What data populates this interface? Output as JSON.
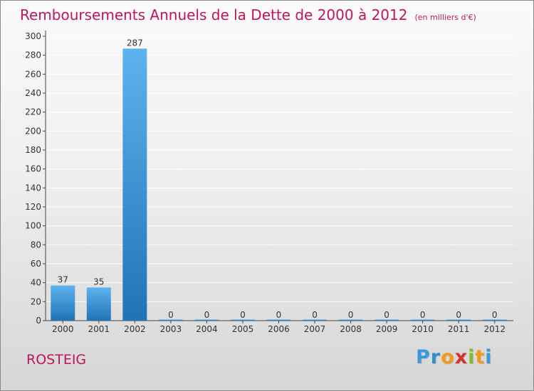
{
  "header": {
    "title": "Remboursements Annuels de la Dette de 2000 à 2012",
    "unit": "(en milliers d'€)"
  },
  "commune": "ROSTEIG",
  "logo": {
    "text": "Proxiti",
    "letters": [
      "P",
      "r",
      "o",
      "x",
      "i",
      "t",
      "i"
    ],
    "colors": [
      "#3a9ad9",
      "#2e8fd0",
      "#f29a1c",
      "#d8312b",
      "#80bb2c",
      "#f29a1c",
      "#3a9ad9"
    ]
  },
  "colors": {
    "title": "#c0155a",
    "bar_top": "#5db3ec",
    "bar_bottom": "#1f74b8",
    "grid": "#ffffff"
  },
  "chart_data": {
    "type": "bar",
    "title": "Remboursements Annuels de la Dette de 2000 à 2012",
    "xlabel": "",
    "ylabel": "(en milliers d'€)",
    "categories": [
      "2000",
      "2001",
      "2002",
      "2003",
      "2004",
      "2005",
      "2006",
      "2007",
      "2008",
      "2009",
      "2010",
      "2011",
      "2012"
    ],
    "values": [
      37,
      35,
      287,
      0,
      0,
      0,
      0,
      0,
      0,
      0,
      0,
      0,
      0
    ],
    "ylim": [
      0,
      300
    ],
    "yticks": [
      0,
      20,
      40,
      60,
      80,
      100,
      120,
      140,
      160,
      180,
      200,
      220,
      240,
      260,
      280,
      300
    ],
    "grid": true,
    "data_labels": true
  }
}
